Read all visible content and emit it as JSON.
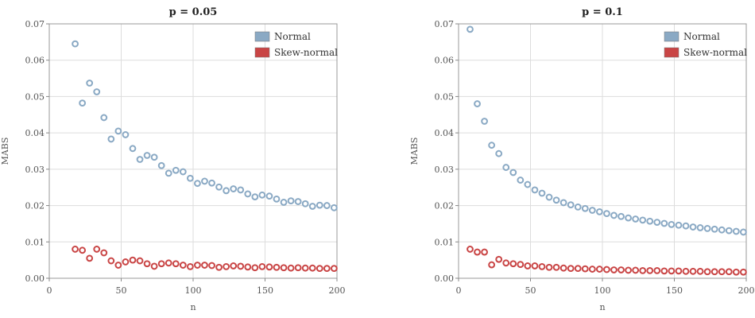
{
  "chart_data": [
    {
      "type": "scatter",
      "title": "p = 0.05",
      "xlabel": "n",
      "ylabel": "MABS",
      "xlim": [
        0,
        200
      ],
      "ylim": [
        0,
        0.07
      ],
      "xticks": [
        0,
        50,
        100,
        150,
        200
      ],
      "xtick_labels": [
        "0",
        "50",
        "100",
        "150",
        "200"
      ],
      "yticks": [
        0,
        0.01,
        0.02,
        0.03,
        0.04,
        0.05,
        0.06,
        0.07
      ],
      "ytick_labels": [
        "0.00",
        "0.01",
        "0.02",
        "0.03",
        "0.04",
        "0.05",
        "0.06",
        "0.07"
      ],
      "grid": true,
      "legend": "top-right",
      "series": [
        {
          "name": "Normal",
          "color": "#8aa9c4",
          "x": [
            18,
            23,
            28,
            33,
            38,
            43,
            48,
            53,
            58,
            63,
            68,
            73,
            78,
            83,
            88,
            93,
            98,
            103,
            108,
            113,
            118,
            123,
            128,
            133,
            138,
            143,
            148,
            153,
            158,
            163,
            168,
            173,
            178,
            183,
            188,
            193,
            198
          ],
          "y": [
            0.0645,
            0.0482,
            0.0537,
            0.0513,
            0.0442,
            0.0383,
            0.0405,
            0.0395,
            0.0357,
            0.0327,
            0.0338,
            0.0333,
            0.031,
            0.0289,
            0.0297,
            0.0293,
            0.0275,
            0.0261,
            0.0267,
            0.0262,
            0.0251,
            0.0241,
            0.0246,
            0.0243,
            0.0232,
            0.0224,
            0.0229,
            0.0226,
            0.0218,
            0.0209,
            0.0213,
            0.0211,
            0.0205,
            0.0198,
            0.0201,
            0.02,
            0.0194
          ]
        },
        {
          "name": "Skew-normal",
          "color": "#c94545",
          "x": [
            18,
            23,
            28,
            33,
            38,
            43,
            48,
            53,
            58,
            63,
            68,
            73,
            78,
            83,
            88,
            93,
            98,
            103,
            108,
            113,
            118,
            123,
            128,
            133,
            138,
            143,
            148,
            153,
            158,
            163,
            168,
            173,
            178,
            183,
            188,
            193,
            198
          ],
          "y": [
            0.008,
            0.0077,
            0.0055,
            0.008,
            0.007,
            0.0048,
            0.0036,
            0.0045,
            0.005,
            0.0048,
            0.004,
            0.0033,
            0.004,
            0.0042,
            0.004,
            0.0036,
            0.0032,
            0.0036,
            0.0036,
            0.0035,
            0.003,
            0.0032,
            0.0034,
            0.0033,
            0.0031,
            0.0029,
            0.0032,
            0.0031,
            0.003,
            0.0029,
            0.0028,
            0.0029,
            0.0028,
            0.0028,
            0.0027,
            0.0027,
            0.0027
          ]
        }
      ]
    },
    {
      "type": "scatter",
      "title": "p = 0.1",
      "xlabel": "n",
      "ylabel": "MABS",
      "xlim": [
        0,
        200
      ],
      "ylim": [
        0,
        0.07
      ],
      "xticks": [
        0,
        50,
        100,
        150,
        200
      ],
      "xtick_labels": [
        "0",
        "50",
        "100",
        "150",
        "200"
      ],
      "yticks": [
        0,
        0.01,
        0.02,
        0.03,
        0.04,
        0.05,
        0.06,
        0.07
      ],
      "ytick_labels": [
        "0.00",
        "0.01",
        "0.02",
        "0.03",
        "0.04",
        "0.05",
        "0.06",
        "0.07"
      ],
      "grid": true,
      "legend": "top-right",
      "series": [
        {
          "name": "Normal",
          "color": "#8aa9c4",
          "x": [
            8,
            13,
            18,
            23,
            28,
            33,
            38,
            43,
            48,
            53,
            58,
            63,
            68,
            73,
            78,
            83,
            88,
            93,
            98,
            103,
            108,
            113,
            118,
            123,
            128,
            133,
            138,
            143,
            148,
            153,
            158,
            163,
            168,
            173,
            178,
            183,
            188,
            193,
            198
          ],
          "y": [
            0.0685,
            0.048,
            0.0432,
            0.0366,
            0.0343,
            0.0305,
            0.0291,
            0.027,
            0.0258,
            0.0243,
            0.0234,
            0.0223,
            0.0215,
            0.0208,
            0.0202,
            0.0196,
            0.0192,
            0.0187,
            0.0183,
            0.0178,
            0.0173,
            0.017,
            0.0166,
            0.0163,
            0.016,
            0.0157,
            0.0154,
            0.0151,
            0.0148,
            0.0146,
            0.0144,
            0.0141,
            0.0139,
            0.0137,
            0.0135,
            0.0133,
            0.0131,
            0.0129,
            0.0127
          ]
        },
        {
          "name": "Skew-normal",
          "color": "#c94545",
          "x": [
            8,
            13,
            18,
            23,
            28,
            33,
            38,
            43,
            48,
            53,
            58,
            63,
            68,
            73,
            78,
            83,
            88,
            93,
            98,
            103,
            108,
            113,
            118,
            123,
            128,
            133,
            138,
            143,
            148,
            153,
            158,
            163,
            168,
            173,
            178,
            183,
            188,
            193,
            198
          ],
          "y": [
            0.008,
            0.0072,
            0.0072,
            0.0037,
            0.0052,
            0.0042,
            0.004,
            0.0038,
            0.0034,
            0.0034,
            0.0032,
            0.003,
            0.003,
            0.0028,
            0.0027,
            0.0027,
            0.0026,
            0.0025,
            0.0025,
            0.0024,
            0.0023,
            0.0023,
            0.0022,
            0.0022,
            0.0021,
            0.0021,
            0.0021,
            0.002,
            0.002,
            0.002,
            0.0019,
            0.0019,
            0.0019,
            0.0018,
            0.0018,
            0.0018,
            0.0018,
            0.0017,
            0.0017
          ]
        }
      ]
    }
  ]
}
